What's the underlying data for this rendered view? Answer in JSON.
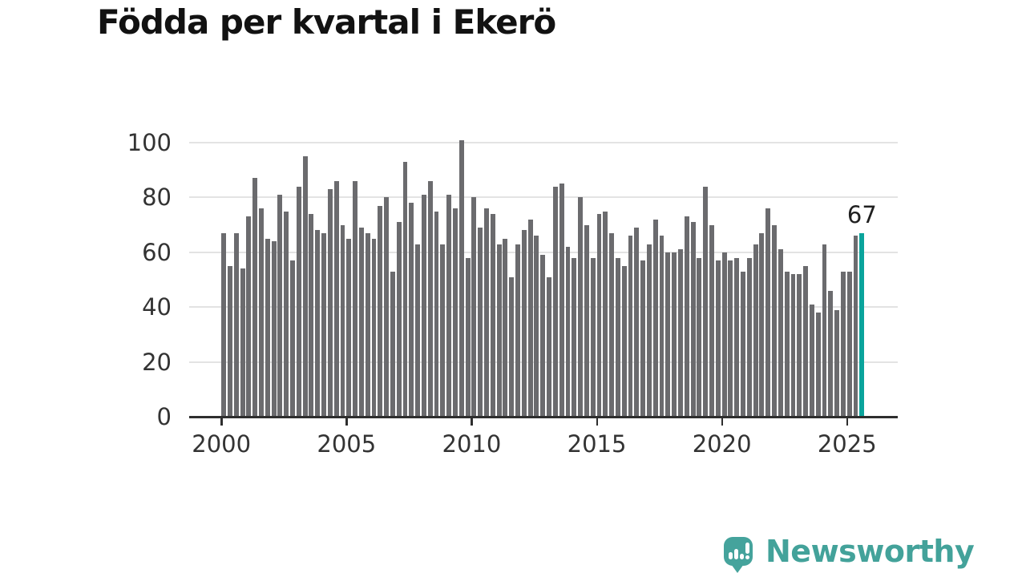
{
  "title": "Födda per kvartal i Ekerö",
  "logo": {
    "text": "Newsworthy"
  },
  "colors": {
    "background": "#ffffff",
    "bar": "#6b6b6e",
    "highlight": "#0aa49c",
    "grid": "#e3e3e3",
    "axis": "#2e2e2e",
    "axis_text": "#333333",
    "title_text": "#121212",
    "annotation_text": "#1f1f1f",
    "logo": "#45a39c"
  },
  "chart_data": {
    "type": "bar",
    "title": "Födda per kvartal i Ekerö",
    "frequency": "quarterly",
    "x_axis": {
      "tick_labels": [
        "2000",
        "2005",
        "2010",
        "2015",
        "2020",
        "2025"
      ],
      "bars_per_tick_interval": 20,
      "first_tick_bar_index": 0
    },
    "y_axis": {
      "tick_labels": [
        "0",
        "20",
        "40",
        "60",
        "80",
        "100"
      ],
      "tick_values": [
        0,
        20,
        40,
        60,
        80,
        100
      ],
      "min": 0,
      "max": 100,
      "grid": true
    },
    "values": [
      67,
      55,
      67,
      54,
      73,
      87,
      76,
      65,
      64,
      81,
      75,
      57,
      84,
      95,
      74,
      68,
      67,
      83,
      86,
      70,
      65,
      86,
      69,
      67,
      65,
      77,
      80,
      53,
      71,
      93,
      78,
      63,
      81,
      86,
      75,
      63,
      81,
      76,
      101,
      58,
      80,
      69,
      76,
      74,
      63,
      65,
      51,
      63,
      68,
      72,
      66,
      59,
      51,
      84,
      85,
      62,
      58,
      80,
      70,
      58,
      74,
      75,
      67,
      58,
      55,
      66,
      69,
      57,
      63,
      72,
      66,
      60,
      60,
      61,
      73,
      71,
      58,
      84,
      70,
      57,
      60,
      57,
      58,
      53,
      58,
      63,
      67,
      76,
      70,
      61,
      53,
      52,
      52,
      55,
      41,
      38,
      63,
      46,
      39,
      53,
      53,
      66,
      67
    ],
    "highlight_bar_index": 102,
    "annotation": {
      "text": "67",
      "bar_index": 102
    },
    "legend": null
  }
}
